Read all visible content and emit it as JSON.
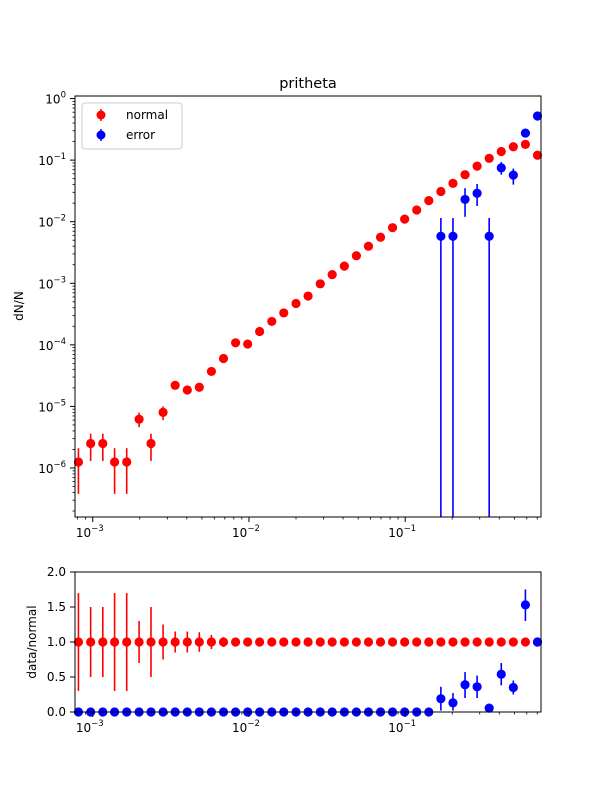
{
  "chart_data": [
    {
      "type": "scatter",
      "title": "pritheta",
      "xlabel": "",
      "ylabel": "dN/N",
      "xscale": "log",
      "yscale": "log",
      "xlim": [
        0.00077,
        0.74
      ],
      "ylim": [
        1.6e-07,
        1.1
      ],
      "x_ticks": [
        {
          "value": 0.001,
          "base": "10",
          "exp": "−3"
        },
        {
          "value": 0.01,
          "base": "10",
          "exp": "−2"
        },
        {
          "value": 0.1,
          "base": "10",
          "exp": "−1"
        }
      ],
      "y_ticks": [
        {
          "value": 1e-06,
          "base": "10",
          "exp": "−6"
        },
        {
          "value": 1e-05,
          "base": "10",
          "exp": "−5"
        },
        {
          "value": 0.0001,
          "base": "10",
          "exp": "−4"
        },
        {
          "value": 0.001,
          "base": "10",
          "exp": "−3"
        },
        {
          "value": 0.01,
          "base": "10",
          "exp": "−2"
        },
        {
          "value": 0.1,
          "base": "10",
          "exp": "−1"
        },
        {
          "value": 1,
          "base": "10",
          "exp": "0"
        }
      ],
      "legend": {
        "position": "upper-left"
      },
      "grid": false,
      "series": [
        {
          "name": "normal",
          "color": "#ff0000",
          "points": [
            {
              "x": 0.00081,
              "y": 1.25e-06,
              "lo": 3.8e-07,
              "hi": 2.1e-06
            },
            {
              "x": 0.00097,
              "y": 2.5e-06,
              "lo": 1.3e-06,
              "hi": 3.6e-06
            },
            {
              "x": 0.00116,
              "y": 2.5e-06,
              "lo": 1.3e-06,
              "hi": 3.6e-06
            },
            {
              "x": 0.00138,
              "y": 1.25e-06,
              "lo": 3.8e-07,
              "hi": 2.1e-06
            },
            {
              "x": 0.00165,
              "y": 1.25e-06,
              "lo": 3.8e-07,
              "hi": 2.1e-06
            },
            {
              "x": 0.00198,
              "y": 6.2e-06,
              "lo": 4.6e-06,
              "hi": 7.9e-06
            },
            {
              "x": 0.00236,
              "y": 2.5e-06,
              "lo": 1.3e-06,
              "hi": 3.6e-06
            },
            {
              "x": 0.00282,
              "y": 8e-06,
              "lo": 6e-06,
              "hi": 1e-05
            },
            {
              "x": 0.00337,
              "y": 2.2e-05,
              "lo": 1.9e-05,
              "hi": 2.5e-05
            },
            {
              "x": 0.00403,
              "y": 1.85e-05,
              "lo": 1.6e-05,
              "hi": 2.1e-05
            },
            {
              "x": 0.00481,
              "y": 2.05e-05,
              "lo": 1.8e-05,
              "hi": 2.3e-05
            },
            {
              "x": 0.00575,
              "y": 3.7e-05,
              "lo": 3.4e-05,
              "hi": 4e-05
            },
            {
              "x": 0.00687,
              "y": 6e-05
            },
            {
              "x": 0.00821,
              "y": 0.000108
            },
            {
              "x": 0.00981,
              "y": 0.000103
            },
            {
              "x": 0.0117,
              "y": 0.000165
            },
            {
              "x": 0.014,
              "y": 0.00024
            },
            {
              "x": 0.0167,
              "y": 0.00033
            },
            {
              "x": 0.02,
              "y": 0.00047
            },
            {
              "x": 0.0239,
              "y": 0.00062
            },
            {
              "x": 0.0286,
              "y": 0.00098
            },
            {
              "x": 0.0341,
              "y": 0.00138
            },
            {
              "x": 0.0408,
              "y": 0.0019
            },
            {
              "x": 0.0487,
              "y": 0.0028
            },
            {
              "x": 0.0582,
              "y": 0.004
            },
            {
              "x": 0.0695,
              "y": 0.0056
            },
            {
              "x": 0.083,
              "y": 0.008
            },
            {
              "x": 0.0992,
              "y": 0.011
            },
            {
              "x": 0.1185,
              "y": 0.0155
            },
            {
              "x": 0.1416,
              "y": 0.022
            },
            {
              "x": 0.1692,
              "y": 0.031
            },
            {
              "x": 0.2022,
              "y": 0.042
            },
            {
              "x": 0.2416,
              "y": 0.058
            },
            {
              "x": 0.2886,
              "y": 0.08
            },
            {
              "x": 0.3448,
              "y": 0.107
            },
            {
              "x": 0.412,
              "y": 0.138
            },
            {
              "x": 0.4922,
              "y": 0.165
            },
            {
              "x": 0.5881,
              "y": 0.18
            },
            {
              "x": 0.7026,
              "y": 0.12
            }
          ]
        },
        {
          "name": "error",
          "color": "#0000ff",
          "points": [
            {
              "x": 0.1692,
              "y": 0.0058,
              "lo": 1.6e-07,
              "hi": 0.0115
            },
            {
              "x": 0.2022,
              "y": 0.0058,
              "lo": 1.6e-07,
              "hi": 0.0115
            },
            {
              "x": 0.2416,
              "y": 0.023,
              "lo": 0.012,
              "hi": 0.035
            },
            {
              "x": 0.2886,
              "y": 0.029,
              "lo": 0.018,
              "hi": 0.041
            },
            {
              "x": 0.3448,
              "y": 0.0058,
              "lo": 1.6e-07,
              "hi": 0.0115
            },
            {
              "x": 0.412,
              "y": 0.075,
              "lo": 0.058,
              "hi": 0.093
            },
            {
              "x": 0.4922,
              "y": 0.057,
              "lo": 0.04,
              "hi": 0.073
            },
            {
              "x": 0.5881,
              "y": 0.275
            },
            {
              "x": 0.7026,
              "y": 0.52
            }
          ]
        }
      ]
    },
    {
      "type": "scatter",
      "title": "",
      "xlabel": "",
      "ylabel": "data/normal",
      "xscale": "log",
      "yscale": "linear",
      "xlim": [
        0.00077,
        0.74
      ],
      "ylim": [
        0.0,
        2.0
      ],
      "x_ticks": [
        {
          "value": 0.001,
          "base": "10",
          "exp": "−3"
        },
        {
          "value": 0.01,
          "base": "10",
          "exp": "−2"
        },
        {
          "value": 0.1,
          "base": "10",
          "exp": "−1"
        }
      ],
      "y_ticks": [
        {
          "value": 0.0,
          "label": "0.0"
        },
        {
          "value": 0.5,
          "label": "0.5"
        },
        {
          "value": 1.0,
          "label": "1.0"
        },
        {
          "value": 1.5,
          "label": "1.5"
        },
        {
          "value": 2.0,
          "label": "2.0"
        }
      ],
      "grid": false,
      "series": [
        {
          "name": "normal",
          "color": "#ff0000",
          "points": [
            {
              "x": 0.00081,
              "y": 1.0,
              "lo": 0.3,
              "hi": 1.7
            },
            {
              "x": 0.00097,
              "y": 1.0,
              "lo": 0.5,
              "hi": 1.5
            },
            {
              "x": 0.00116,
              "y": 1.0,
              "lo": 0.5,
              "hi": 1.5
            },
            {
              "x": 0.00138,
              "y": 1.0,
              "lo": 0.3,
              "hi": 1.7
            },
            {
              "x": 0.00165,
              "y": 1.0,
              "lo": 0.3,
              "hi": 1.7
            },
            {
              "x": 0.00198,
              "y": 1.0,
              "lo": 0.7,
              "hi": 1.3
            },
            {
              "x": 0.00236,
              "y": 1.0,
              "lo": 0.5,
              "hi": 1.5
            },
            {
              "x": 0.00282,
              "y": 1.0,
              "lo": 0.75,
              "hi": 1.25
            },
            {
              "x": 0.00337,
              "y": 1.0,
              "lo": 0.85,
              "hi": 1.15
            },
            {
              "x": 0.00403,
              "y": 1.0,
              "lo": 0.85,
              "hi": 1.15
            },
            {
              "x": 0.00481,
              "y": 1.0,
              "lo": 0.86,
              "hi": 1.14
            },
            {
              "x": 0.00575,
              "y": 1.0,
              "lo": 0.9,
              "hi": 1.1
            },
            {
              "x": 0.00687,
              "y": 1.0,
              "lo": 0.93,
              "hi": 1.07
            },
            {
              "x": 0.00821,
              "y": 1.0,
              "lo": 0.95,
              "hi": 1.05
            },
            {
              "x": 0.00981,
              "y": 1.0
            },
            {
              "x": 0.0117,
              "y": 1.0
            },
            {
              "x": 0.014,
              "y": 1.0
            },
            {
              "x": 0.0167,
              "y": 1.0
            },
            {
              "x": 0.02,
              "y": 1.0
            },
            {
              "x": 0.0239,
              "y": 1.0
            },
            {
              "x": 0.0286,
              "y": 1.0
            },
            {
              "x": 0.0341,
              "y": 1.0
            },
            {
              "x": 0.0408,
              "y": 1.0
            },
            {
              "x": 0.0487,
              "y": 1.0
            },
            {
              "x": 0.0582,
              "y": 1.0
            },
            {
              "x": 0.0695,
              "y": 1.0
            },
            {
              "x": 0.083,
              "y": 1.0
            },
            {
              "x": 0.0992,
              "y": 1.0
            },
            {
              "x": 0.1185,
              "y": 1.0
            },
            {
              "x": 0.1416,
              "y": 1.0
            },
            {
              "x": 0.1692,
              "y": 1.0
            },
            {
              "x": 0.2022,
              "y": 1.0
            },
            {
              "x": 0.2416,
              "y": 1.0
            },
            {
              "x": 0.2886,
              "y": 1.0
            },
            {
              "x": 0.3448,
              "y": 1.0
            },
            {
              "x": 0.412,
              "y": 1.0
            },
            {
              "x": 0.4922,
              "y": 1.0
            },
            {
              "x": 0.5881,
              "y": 1.0
            },
            {
              "x": 0.7026,
              "y": 1.0
            }
          ]
        },
        {
          "name": "error",
          "color": "#0000ff",
          "points": [
            {
              "x": 0.00081,
              "y": 0.0
            },
            {
              "x": 0.00097,
              "y": 0.0
            },
            {
              "x": 0.00116,
              "y": 0.0
            },
            {
              "x": 0.00138,
              "y": 0.0
            },
            {
              "x": 0.00165,
              "y": 0.0
            },
            {
              "x": 0.00198,
              "y": 0.0
            },
            {
              "x": 0.00236,
              "y": 0.0
            },
            {
              "x": 0.00282,
              "y": 0.0
            },
            {
              "x": 0.00337,
              "y": 0.0
            },
            {
              "x": 0.00403,
              "y": 0.0
            },
            {
              "x": 0.00481,
              "y": 0.0
            },
            {
              "x": 0.00575,
              "y": 0.0
            },
            {
              "x": 0.00687,
              "y": 0.0
            },
            {
              "x": 0.00821,
              "y": 0.0
            },
            {
              "x": 0.00981,
              "y": 0.0
            },
            {
              "x": 0.0117,
              "y": 0.0
            },
            {
              "x": 0.014,
              "y": 0.0
            },
            {
              "x": 0.0167,
              "y": 0.0
            },
            {
              "x": 0.02,
              "y": 0.0
            },
            {
              "x": 0.0239,
              "y": 0.0
            },
            {
              "x": 0.0286,
              "y": 0.0
            },
            {
              "x": 0.0341,
              "y": 0.0
            },
            {
              "x": 0.0408,
              "y": 0.0
            },
            {
              "x": 0.0487,
              "y": 0.0
            },
            {
              "x": 0.0582,
              "y": 0.0
            },
            {
              "x": 0.0695,
              "y": 0.0
            },
            {
              "x": 0.083,
              "y": 0.0
            },
            {
              "x": 0.0992,
              "y": 0.0
            },
            {
              "x": 0.1185,
              "y": 0.0
            },
            {
              "x": 0.1416,
              "y": 0.0
            },
            {
              "x": 0.1692,
              "y": 0.19,
              "lo": 0.02,
              "hi": 0.36
            },
            {
              "x": 0.2022,
              "y": 0.13,
              "lo": 0.02,
              "hi": 0.27
            },
            {
              "x": 0.2416,
              "y": 0.39,
              "lo": 0.2,
              "hi": 0.57
            },
            {
              "x": 0.2886,
              "y": 0.36,
              "lo": 0.2,
              "hi": 0.52
            },
            {
              "x": 0.3448,
              "y": 0.055
            },
            {
              "x": 0.412,
              "y": 0.54,
              "lo": 0.38,
              "hi": 0.7
            },
            {
              "x": 0.4922,
              "y": 0.35,
              "lo": 0.25,
              "hi": 0.45
            },
            {
              "x": 0.5881,
              "y": 1.53,
              "lo": 1.3,
              "hi": 1.75
            },
            {
              "x": 0.7026,
              "y": 1.0
            }
          ]
        }
      ]
    }
  ]
}
